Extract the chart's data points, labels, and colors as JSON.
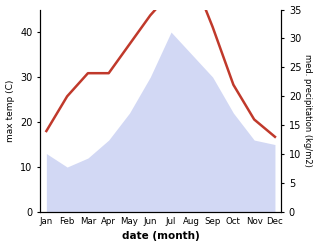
{
  "months": [
    "Jan",
    "Feb",
    "Mar",
    "Apr",
    "May",
    "Jun",
    "Jul",
    "Aug",
    "Sep",
    "Oct",
    "Nov",
    "Dec"
  ],
  "max_temp": [
    14,
    20,
    24,
    24,
    29,
    34,
    38,
    41,
    32,
    22,
    16,
    13
  ],
  "precipitation": [
    13,
    10,
    12,
    16,
    22,
    30,
    40,
    35,
    30,
    22,
    16,
    15
  ],
  "temp_color": "#c0392b",
  "precip_color": "#c0c8f0",
  "precip_fill_alpha": 0.7,
  "left_ylim": [
    0,
    45
  ],
  "right_ylim": [
    0,
    35
  ],
  "left_yticks": [
    0,
    10,
    20,
    30,
    40
  ],
  "right_yticks": [
    0,
    5,
    10,
    15,
    20,
    25,
    30,
    35
  ],
  "xlabel": "date (month)",
  "ylabel_left": "max temp (C)",
  "ylabel_right": "med. precipitation (kg/m2)",
  "background_color": "#ffffff",
  "line_width": 1.8
}
